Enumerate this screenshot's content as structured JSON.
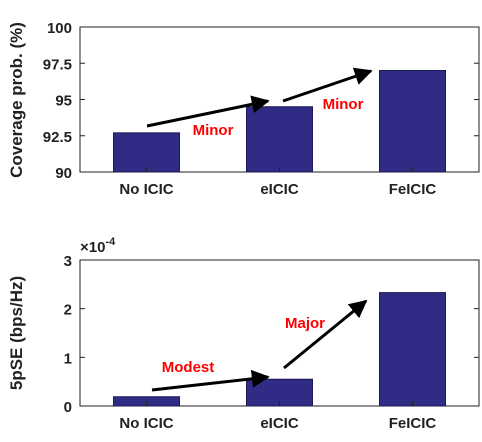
{
  "colors": {
    "bar_fill": "#302C86",
    "bar_stroke": "#1a1850",
    "arrow": "#000000",
    "annotation": "#ff0000",
    "axis": "#222222",
    "grid": "none"
  },
  "chart_data": [
    {
      "type": "bar",
      "categories": [
        "No ICIC",
        "eICIC",
        "FeICIC"
      ],
      "values": [
        92.7,
        94.5,
        97.0
      ],
      "ylabel": "Coverage prob. (%)",
      "ylim": [
        90,
        100
      ],
      "yticks": [
        "90",
        "92.5",
        "95",
        "97.5",
        "100"
      ],
      "ytick_values": [
        90,
        92.5,
        95,
        97.5,
        100
      ],
      "grid": false,
      "annotations": [
        {
          "text": "Minor",
          "from_category": "No ICIC",
          "to_category": "eICIC"
        },
        {
          "text": "Minor",
          "from_category": "eICIC",
          "to_category": "FeICIC"
        }
      ]
    },
    {
      "type": "bar",
      "categories": [
        "No ICIC",
        "eICIC",
        "FeICIC"
      ],
      "values": [
        0.19,
        0.55,
        2.33
      ],
      "ylabel": "5pSE (bps/Hz)",
      "ylim": [
        0,
        3
      ],
      "yticks": [
        "0",
        "1",
        "2",
        "3"
      ],
      "ytick_values": [
        0,
        1,
        2,
        3
      ],
      "scale_base": "×10",
      "scale_exp": "-4",
      "grid": false,
      "annotations": [
        {
          "text": "Modest",
          "from_category": "No ICIC",
          "to_category": "eICIC"
        },
        {
          "text": "Major",
          "from_category": "eICIC",
          "to_category": "FeICIC"
        }
      ]
    }
  ]
}
